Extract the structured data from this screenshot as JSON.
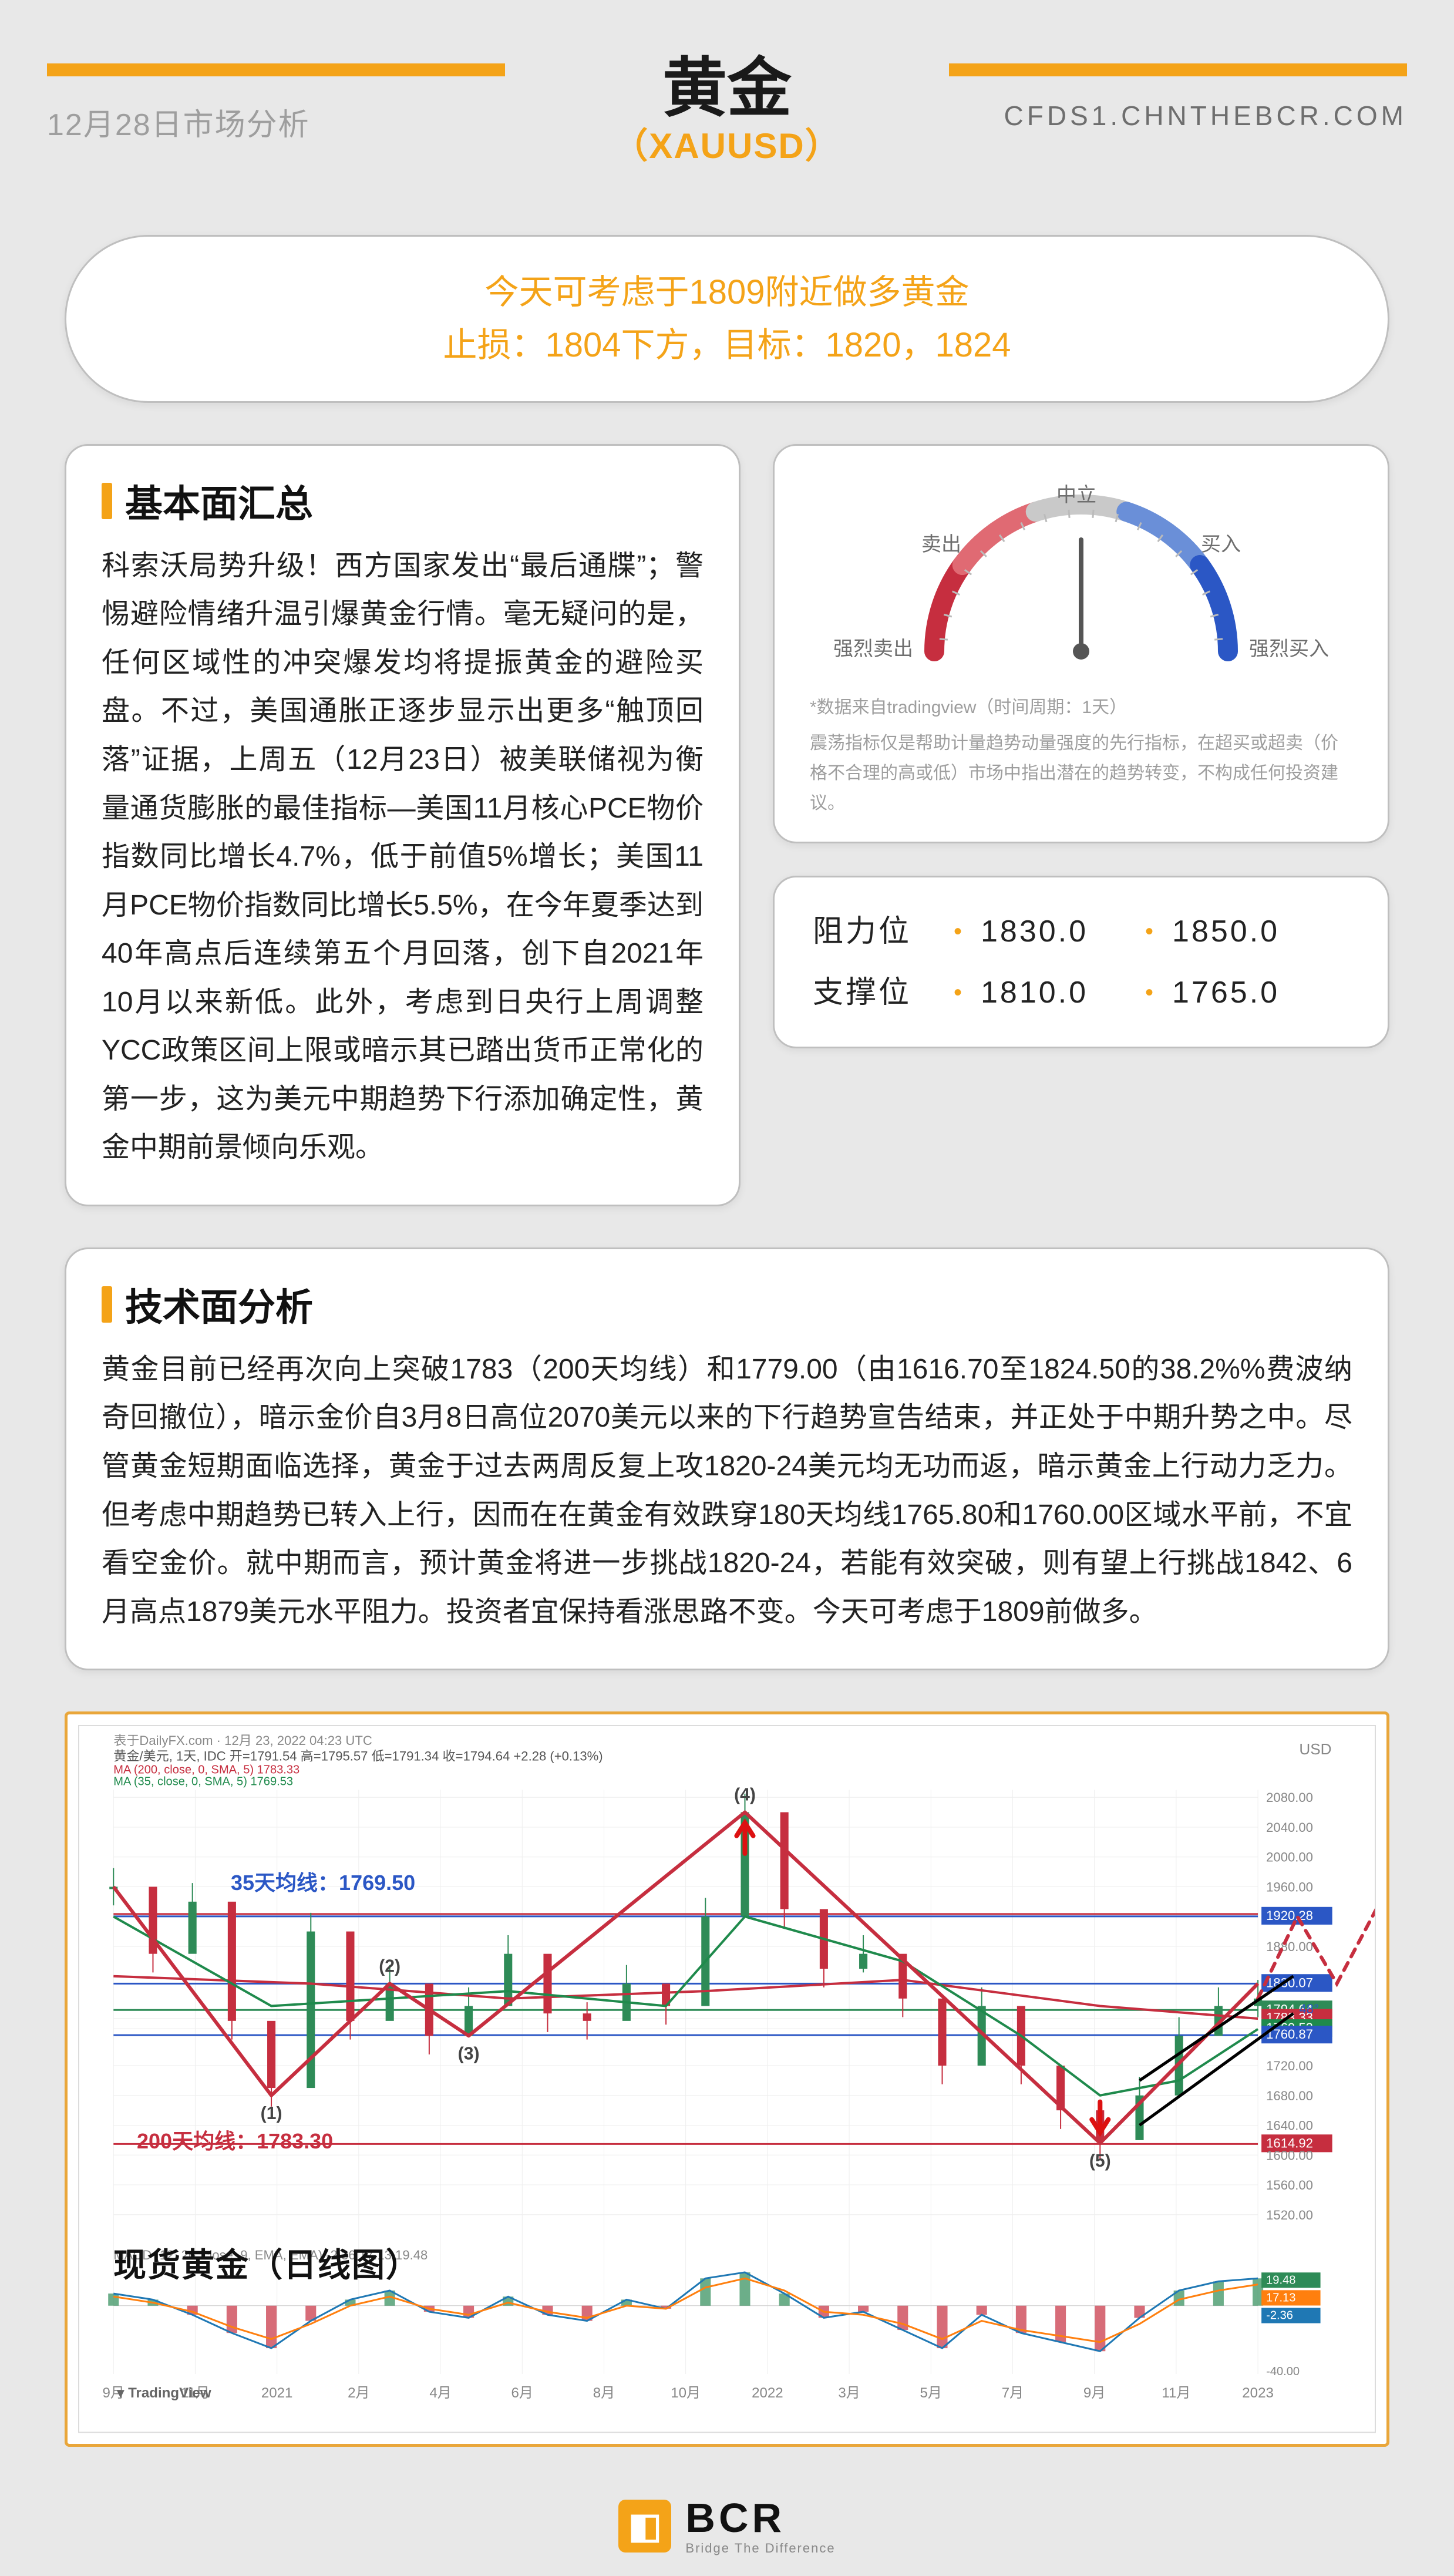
{
  "header": {
    "date_label": "12月28日市场分析",
    "title": "黄金",
    "symbol": "（XAUUSD）",
    "url": "CFDS1.CHNTHEBCR.COM",
    "accent": "#f4a318",
    "fg": "#1a1a1a",
    "muted": "#9e9e9e"
  },
  "callout": {
    "line1": "今天可考虑于1809附近做多黄金",
    "line2": "止损：1804下方，目标：1820，1824"
  },
  "fundamental": {
    "title": "基本面汇总",
    "text": "科索沃局势升级！西方国家发出“最后通牒”；警惕避险情绪升温引爆黄金行情。毫无疑问的是，任何区域性的冲突爆发均将提振黄金的避险买盘。不过，美国通胀正逐步显示出更多“触顶回落”证据，上周五（12月23日）被美联储视为衡量通货膨胀的最佳指标—美国11月核心PCE物价指数同比增长4.7%，低于前值5%增长；美国11月PCE物价指数同比增长5.5%，在今年夏季达到40年高点后连续第五个月回落，创下自2021年10月以来新低。此外，考虑到日央行上周调整YCC政策区间上限或暗示其已踏出货币正常化的第一步，这为美元中期趋势下行添加确定性，黄金中期前景倾向乐观。"
  },
  "gauge": {
    "labels": {
      "strong_sell": "强烈卖出",
      "sell": "卖出",
      "neutral": "中立",
      "buy": "买入",
      "strong_buy": "强烈买入"
    },
    "needle_angle_deg": 0,
    "arc": {
      "strong_sell_color": "#c62e3f",
      "sell_color": "#e06a73",
      "neutral_color": "#c9c9c9",
      "buy_color": "#6a8fd8",
      "strong_buy_color": "#2b57c5",
      "bg_color": "#ffffff"
    },
    "footnote1": "*数据来自tradingview（时间周期：1天）",
    "footnote2": "震荡指标仅是帮助计量趋势动量强度的先行指标，在超买或超卖（价格不合理的高或低）市场中指出潜在的趋势转变，不构成任何投资建议。"
  },
  "levels": {
    "resistance_label": "阻力位",
    "support_label": "支撑位",
    "resistance": [
      "1830.0",
      "1850.0"
    ],
    "support": [
      "1810.0",
      "1765.0"
    ]
  },
  "technical": {
    "title": "技术面分析",
    "text": "黄金目前已经再次向上突破1783（200天均线）和1779.00（由1616.70至1824.50的38.2%%费波纳奇回撤位），暗示金价自3月8日高位2070美元以来的下行趋势宣告结束，并正处于中期升势之中。尽管黄金短期面临选择，黄金于过去两周反复上攻1820-24美元均无功而返，暗示黄金上行动力乏力。但考虑中期趋势已转入上行，因而在在黄金有效跌穿180天均线1765.80和1760.00区域水平前，不宜看空金价。就中期而言，预计黄金将进一步挑战1820-24，若能有效突破，则有望上行挑战1842、6月高点1879美元水平阻力。投资者宜保持看涨思路不变。今天可考虑于1809前做多。"
  },
  "chart": {
    "title_overlay": "现货黄金（日线图）",
    "source_line": "表于DailyFX.com · 12月 23, 2022 04:23 UTC",
    "pair_line": "黄金/美元, 1天, IDC  开=1791.54  高=1795.57  低=1791.34  收=1794.64  +2.28 (+0.13%)",
    "ma_200_line": "MA (200, close, 0, SMA, 5) 1783.33",
    "ma_35_line": "MA (35, close, 0, SMA, 5) 1769.53",
    "anno_35ma": "35天均线：1769.50",
    "anno_200ma": "200天均线：1783.30",
    "macd_line": "MACD (12, 26, close, 9, EMA, EMA)  -2.36  17.13  19.48",
    "tv_watermark": "TradingView",
    "y_axis_label": "USD",
    "y_ticks": [
      "2080.00",
      "2040.00",
      "2000.00",
      "1960.00",
      "1920.28",
      "1880.00",
      "1830.07",
      "1794.64",
      "1783.33",
      "1769.53",
      "1760.87",
      "1720.00",
      "1680.00",
      "1640.00",
      "1614.92",
      "1600.00",
      "1560.00",
      "1520.00"
    ],
    "macd_yticks": [
      "19.48",
      "17.13",
      "-2.36",
      "-40.00"
    ],
    "x_ticks": [
      "9月",
      "11月",
      "2021",
      "2月",
      "4月",
      "6月",
      "8月",
      "10月",
      "2022",
      "3月",
      "5月",
      "7月",
      "9月",
      "11月",
      "2023"
    ],
    "waves": [
      "(1)",
      "(2)",
      "(3)",
      "(4)",
      "(5)"
    ],
    "price_series": {
      "type": "line",
      "xlim": [
        0,
        29
      ],
      "ylim": [
        1520,
        2090
      ],
      "points": [
        [
          0,
          1960
        ],
        [
          1,
          1870
        ],
        [
          2,
          1940
        ],
        [
          3,
          1780
        ],
        [
          4,
          1690
        ],
        [
          5,
          1900
        ],
        [
          6,
          1780
        ],
        [
          7,
          1830
        ],
        [
          8,
          1760
        ],
        [
          9,
          1800
        ],
        [
          10,
          1870
        ],
        [
          11,
          1790
        ],
        [
          12,
          1780
        ],
        [
          13,
          1830
        ],
        [
          14,
          1800
        ],
        [
          15,
          1920
        ],
        [
          16,
          2060
        ],
        [
          17,
          1930
        ],
        [
          18,
          1850
        ],
        [
          19,
          1870
        ],
        [
          20,
          1810
        ],
        [
          21,
          1720
        ],
        [
          22,
          1800
        ],
        [
          23,
          1720
        ],
        [
          24,
          1660
        ],
        [
          25,
          1620
        ],
        [
          26,
          1680
        ],
        [
          27,
          1760
        ],
        [
          28,
          1800
        ],
        [
          29,
          1810
        ]
      ],
      "zigzag": [
        [
          0,
          1960
        ],
        [
          4,
          1680
        ],
        [
          7,
          1830
        ],
        [
          9,
          1760
        ],
        [
          16,
          2060
        ],
        [
          25,
          1616
        ],
        [
          29,
          1830
        ]
      ],
      "projection": [
        [
          29,
          1810
        ],
        [
          30,
          1920
        ],
        [
          31,
          1830
        ],
        [
          32,
          1930
        ]
      ],
      "h_lines": [
        {
          "y": 1920.28,
          "color": "#2b57c5"
        },
        {
          "y": 1920.28,
          "color": "#c62e3f",
          "offset": -4
        },
        {
          "y": 1830.07,
          "color": "#2b57c5"
        },
        {
          "y": 1794.64,
          "color": "#2e8b57"
        },
        {
          "y": 1760.87,
          "color": "#2b57c5"
        },
        {
          "y": 1614.92,
          "color": "#c62e3f"
        }
      ],
      "ma200_points": [
        [
          0,
          1840
        ],
        [
          5,
          1830
        ],
        [
          10,
          1810
        ],
        [
          15,
          1820
        ],
        [
          20,
          1835
        ],
        [
          25,
          1800
        ],
        [
          29,
          1783
        ]
      ],
      "ma35_points": [
        [
          0,
          1920
        ],
        [
          4,
          1800
        ],
        [
          7,
          1810
        ],
        [
          10,
          1820
        ],
        [
          14,
          1800
        ],
        [
          16,
          1920
        ],
        [
          20,
          1860
        ],
        [
          23,
          1760
        ],
        [
          25,
          1680
        ],
        [
          27,
          1700
        ],
        [
          29,
          1769
        ]
      ],
      "colors": {
        "zigzag": "#c62e3f",
        "projection": "#c62e3f",
        "candles_up": "#2e8b57",
        "candles_dn": "#c62e3f",
        "ma200": "#c62e3f",
        "ma35": "#1f8a4c",
        "grid": "#eeeeee",
        "axis": "#9e9e9e",
        "hline_blue": "#2b57c5"
      }
    },
    "macd_series": {
      "type": "macd",
      "xlim": [
        0,
        29
      ],
      "ylim": [
        -45,
        25
      ],
      "hist": [
        8,
        4,
        -6,
        -18,
        -28,
        -10,
        4,
        10,
        -4,
        -8,
        6,
        -6,
        -10,
        4,
        -2,
        18,
        22,
        8,
        -8,
        -4,
        -16,
        -28,
        -6,
        -18,
        -24,
        -30,
        -8,
        10,
        16,
        18
      ],
      "signal": [
        6,
        2,
        -4,
        -14,
        -22,
        -12,
        0,
        6,
        -2,
        -6,
        2,
        -4,
        -8,
        0,
        -2,
        12,
        18,
        10,
        -4,
        -6,
        -12,
        -22,
        -10,
        -16,
        -20,
        -24,
        -12,
        4,
        10,
        14
      ],
      "colors": {
        "hist_pos": "#2e8b57",
        "hist_neg": "#c62e3f",
        "macd_line": "#1f78b4",
        "signal_line": "#ff7f0e"
      }
    }
  },
  "footer": {
    "brand": "BCR",
    "tagline": "Bridge The Difference"
  }
}
